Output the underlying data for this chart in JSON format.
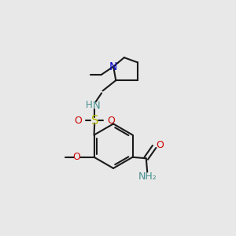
{
  "background_color": "#e8e8e8",
  "bond_color": "#1a1a1a",
  "nitrogen_color": "#0000cc",
  "oxygen_color": "#cc0000",
  "sulfur_color": "#b8b800",
  "nh_color": "#4a9090",
  "figsize": [
    3.0,
    3.0
  ],
  "dpi": 100,
  "xlim": [
    0,
    10
  ],
  "ylim": [
    0,
    10
  ]
}
